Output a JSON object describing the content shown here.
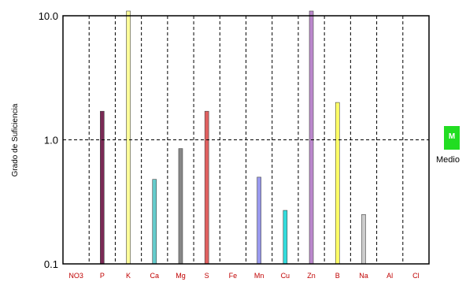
{
  "chart_data": {
    "type": "bar",
    "ylabel": "Grado de Suficiencia",
    "yscale": "log",
    "ylim": [
      0.1,
      10.0
    ],
    "yticks": [
      "10.0",
      "1.0",
      "0.1"
    ],
    "reference_line": 1.0,
    "grid": "dashed vertical separators between categories",
    "categories": [
      "NO3",
      "P",
      "K",
      "Ca",
      "Mg",
      "S",
      "Fe",
      "Mn",
      "Cu",
      "Zn",
      "B",
      "Na",
      "Al",
      "Cl"
    ],
    "values": [
      null,
      1.7,
      11.0,
      0.48,
      0.85,
      1.7,
      null,
      0.5,
      0.27,
      11.0,
      2.0,
      0.25,
      null,
      null
    ],
    "colors": [
      "#000000",
      "#7a2a55",
      "#ffff99",
      "#66cccc",
      "#888888",
      "#e06060",
      "#000000",
      "#9999ee",
      "#33dddd",
      "#bb88cc",
      "#ffff66",
      "#cccccc",
      "#000000",
      "#000000"
    ],
    "legend": [
      {
        "label": "M",
        "text": "Medio",
        "color": "#22dd22"
      }
    ]
  }
}
